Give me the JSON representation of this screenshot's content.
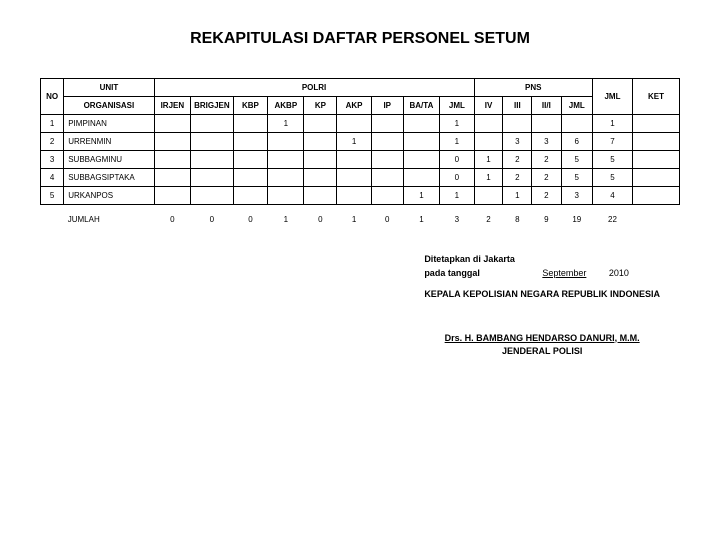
{
  "title": "REKAPITULASI DAFTAR PERSONEL SETUM",
  "header": {
    "no": "NO",
    "unit": "UNIT",
    "organisasi": "ORGANISASI",
    "polri": "POLRI",
    "pns": "PNS",
    "jml": "JML",
    "ket": "KET",
    "cols_polri": [
      "IRJEN",
      "BRIGJEN",
      "KBP",
      "AKBP",
      "KP",
      "AKP",
      "IP",
      "BA/TA",
      "JML"
    ],
    "cols_pns": [
      "IV",
      "III",
      "II/I",
      "JML"
    ]
  },
  "rows": [
    {
      "no": "1",
      "org": "PIMPINAN",
      "c": [
        "",
        "",
        "",
        "1",
        "",
        "",
        "",
        "",
        "1",
        "",
        "",
        "",
        "",
        "1"
      ]
    },
    {
      "no": "2",
      "org": "URRENMIN",
      "c": [
        "",
        "",
        "",
        "",
        "",
        "1",
        "",
        "",
        "1",
        "",
        "3",
        "3",
        "6",
        "7"
      ]
    },
    {
      "no": "3",
      "org": "SUBBAGMINU",
      "c": [
        "",
        "",
        "",
        "",
        "",
        "",
        "",
        "",
        "0",
        "1",
        "2",
        "2",
        "5",
        "5"
      ]
    },
    {
      "no": "4",
      "org": "SUBBAGSIPTAKA",
      "c": [
        "",
        "",
        "",
        "",
        "",
        "",
        "",
        "",
        "0",
        "1",
        "2",
        "2",
        "5",
        "5"
      ]
    },
    {
      "no": "5",
      "org": "URKANPOS",
      "c": [
        "",
        "",
        "",
        "",
        "",
        "",
        "",
        "1",
        "1",
        "",
        "1",
        "2",
        "3",
        "4"
      ]
    }
  ],
  "jumlah": {
    "label": "JUMLAH",
    "c": [
      "0",
      "0",
      "0",
      "1",
      "0",
      "1",
      "0",
      "1",
      "3",
      "2",
      "8",
      "9",
      "19",
      "22"
    ]
  },
  "footer": {
    "line1": "Ditetapkan di Jakarta",
    "tanggal": "pada tanggal",
    "month": "September",
    "year": "2010",
    "kepala": "KEPALA KEPOLISIAN NEGARA REPUBLIK INDONESIA",
    "name": "Drs. H. BAMBANG HENDARSO DANURI, M.M.",
    "rank": "JENDERAL POLISI"
  },
  "col_widths": {
    "no": 18,
    "org": 90,
    "polri_sub": 32,
    "pns_sub": 28,
    "jml": 40,
    "ket": 50
  }
}
